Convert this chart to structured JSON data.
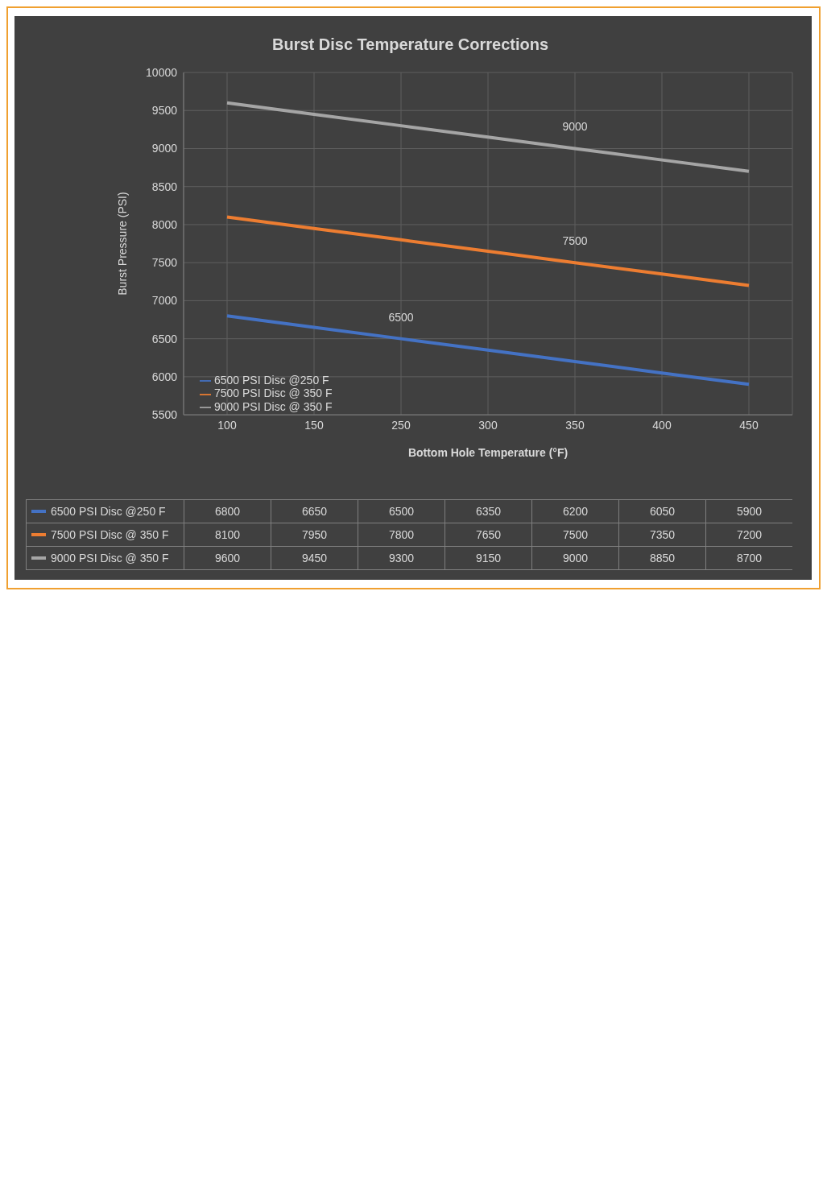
{
  "chart_data": {
    "type": "line",
    "title": "Burst Disc Temperature Corrections",
    "xlabel": "Bottom Hole Temperature (°F)",
    "ylabel": "Burst Pressure (PSI)",
    "categories": [
      "100",
      "150",
      "250",
      "300",
      "350",
      "400",
      "450"
    ],
    "series": [
      {
        "name": "6500 PSI Disc @250 F",
        "color": "#4472c4",
        "values": [
          6800,
          6650,
          6500,
          6350,
          6200,
          6050,
          5900
        ]
      },
      {
        "name": "7500 PSI Disc @ 350 F",
        "color": "#ed7d31",
        "values": [
          8100,
          7950,
          7800,
          7650,
          7500,
          7350,
          7200
        ]
      },
      {
        "name": "9000 PSI Disc @ 350 F",
        "color": "#a5a5a5",
        "values": [
          9600,
          9450,
          9300,
          9150,
          9000,
          8850,
          8700
        ]
      }
    ],
    "ylim": [
      5500,
      10000
    ],
    "yticks": [
      5500,
      6000,
      6500,
      7000,
      7500,
      8000,
      8500,
      9000,
      9500,
      10000
    ],
    "annotations": [
      {
        "text": "9000",
        "x": "350",
        "y": 9000
      },
      {
        "text": "7500",
        "x": "350",
        "y": 7500
      },
      {
        "text": "6500",
        "x": "250",
        "y": 6500
      }
    ],
    "grid": true,
    "legend": "bottom left",
    "marker": "none",
    "line_style": "solid",
    "data_labels": true
  }
}
